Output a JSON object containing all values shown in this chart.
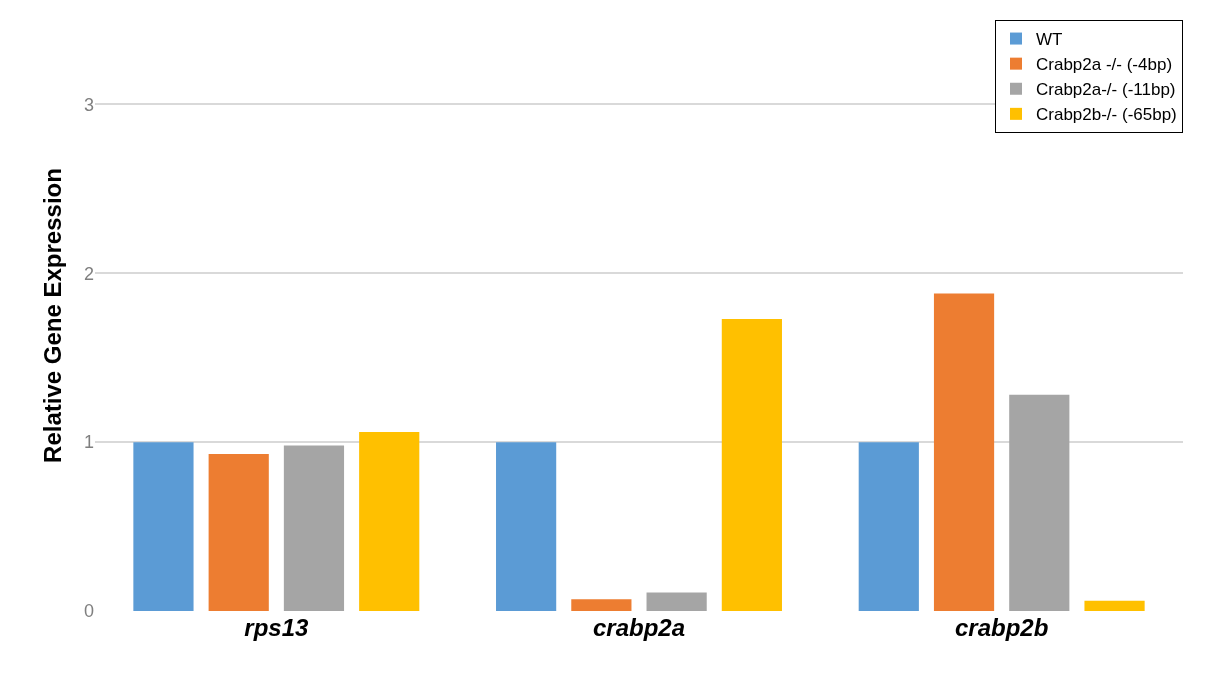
{
  "chart_data": {
    "type": "bar",
    "ylabel": "Relative Gene Expression",
    "categories": [
      "rps13",
      "crabp2a",
      "crabp2b"
    ],
    "series": [
      {
        "name": "WT",
        "color": "#5b9bd5",
        "values": [
          1.0,
          1.0,
          1.0
        ]
      },
      {
        "name": "Crabp2a -/- (-4bp)",
        "color": "#ed7d31",
        "values": [
          0.93,
          0.07,
          1.88
        ]
      },
      {
        "name": "Crabp2a-/- (-11bp)",
        "color": "#a5a5a5",
        "values": [
          0.98,
          0.11,
          1.28
        ]
      },
      {
        "name": "Crabp2b-/- (-65bp)",
        "color": "#ffc000",
        "values": [
          1.06,
          1.73,
          0.06
        ]
      }
    ],
    "ylim": [
      0,
      3.5
    ],
    "yticks": [
      0,
      1,
      2,
      3
    ],
    "grid": "y",
    "legend": "top right"
  }
}
